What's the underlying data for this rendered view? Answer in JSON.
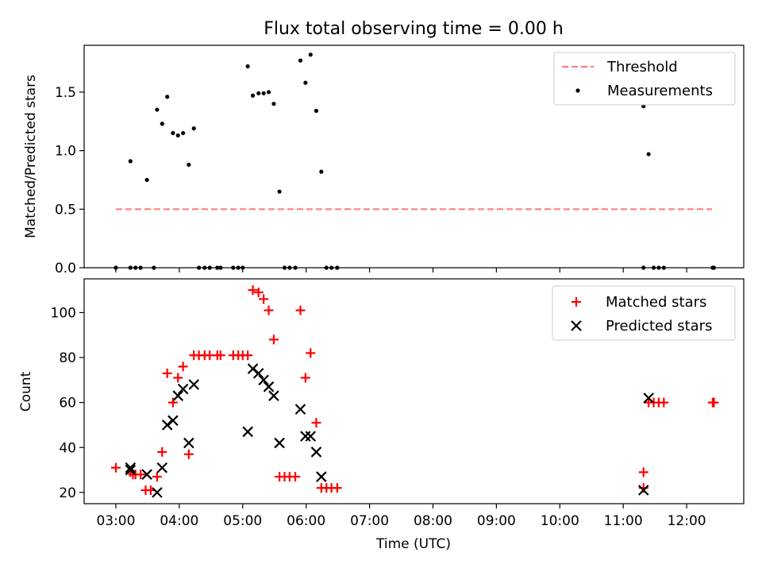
{
  "chart_data": [
    {
      "type": "scatter",
      "title": "Flux total observing time = 0.00 h",
      "xlabel": "",
      "ylabel": "Matched/Predicted stars",
      "xlim_hours": [
        2.5,
        12.9
      ],
      "ylim": [
        0,
        1.9
      ],
      "yticks": [
        0.0,
        0.5,
        1.0,
        1.5
      ],
      "ytick_labels": [
        "0.0",
        "0.5",
        "1.0",
        "1.5"
      ],
      "legend": {
        "position": "top-right",
        "entries": [
          {
            "label": "Threshold",
            "style": "dashed-line",
            "color": "#ff7f7f"
          },
          {
            "label": "Measurements",
            "style": "dot",
            "color": "#000000"
          }
        ]
      },
      "threshold": {
        "value": 0.5,
        "x_start": 3.0,
        "x_end": 12.4,
        "color": "#ff7f7f"
      },
      "series": [
        {
          "name": "Measurements",
          "color": "#000000",
          "points": [
            [
              3.0,
              0.0
            ],
            [
              3.23,
              0.91
            ],
            [
              3.23,
              0.0
            ],
            [
              3.31,
              0.0
            ],
            [
              3.39,
              0.0
            ],
            [
              3.49,
              0.75
            ],
            [
              3.6,
              0.0
            ],
            [
              3.65,
              1.35
            ],
            [
              3.73,
              1.23
            ],
            [
              3.81,
              1.46
            ],
            [
              3.9,
              1.15
            ],
            [
              3.98,
              1.13
            ],
            [
              4.06,
              1.15
            ],
            [
              4.15,
              0.88
            ],
            [
              4.23,
              1.19
            ],
            [
              4.31,
              0.0
            ],
            [
              4.4,
              0.0
            ],
            [
              4.48,
              0.0
            ],
            [
              4.6,
              0.0
            ],
            [
              4.65,
              0.0
            ],
            [
              4.85,
              0.0
            ],
            [
              4.93,
              0.0
            ],
            [
              5.0,
              0.0
            ],
            [
              5.08,
              1.72
            ],
            [
              5.16,
              1.47
            ],
            [
              5.25,
              1.49
            ],
            [
              5.33,
              1.49
            ],
            [
              5.41,
              1.5
            ],
            [
              5.49,
              1.4
            ],
            [
              5.58,
              0.65
            ],
            [
              5.66,
              0.0
            ],
            [
              5.74,
              0.0
            ],
            [
              5.83,
              0.0
            ],
            [
              5.91,
              1.77
            ],
            [
              5.99,
              1.58
            ],
            [
              6.07,
              1.82
            ],
            [
              6.16,
              1.34
            ],
            [
              6.24,
              0.82
            ],
            [
              6.32,
              0.0
            ],
            [
              6.4,
              0.0
            ],
            [
              6.49,
              0.0
            ],
            [
              11.32,
              0.0
            ],
            [
              11.32,
              1.38
            ],
            [
              11.4,
              0.97
            ],
            [
              11.48,
              0.0
            ],
            [
              11.56,
              0.0
            ],
            [
              11.64,
              0.0
            ],
            [
              12.41,
              0.0
            ],
            [
              12.43,
              0.0
            ]
          ]
        }
      ]
    },
    {
      "type": "scatter",
      "title": "",
      "xlabel": "Time (UTC)",
      "ylabel": "Count",
      "xlim_hours": [
        2.5,
        12.9
      ],
      "ylim": [
        15,
        115
      ],
      "yticks": [
        20,
        40,
        60,
        80,
        100
      ],
      "ytick_labels": [
        "20",
        "40",
        "60",
        "80",
        "100"
      ],
      "xticks_hours": [
        3,
        4,
        5,
        6,
        7,
        8,
        9,
        10,
        11,
        12
      ],
      "xtick_labels": [
        "03:00",
        "04:00",
        "05:00",
        "06:00",
        "07:00",
        "08:00",
        "09:00",
        "10:00",
        "11:00",
        "12:00"
      ],
      "legend": {
        "position": "top-right",
        "entries": [
          {
            "label": "Matched stars",
            "style": "plus",
            "color": "#ff0000"
          },
          {
            "label": "Predicted stars",
            "style": "x",
            "color": "#000000"
          }
        ]
      },
      "series": [
        {
          "name": "Matched stars",
          "marker": "plus",
          "color": "#ff0000",
          "points": [
            [
              3.0,
              31
            ],
            [
              3.23,
              29
            ],
            [
              3.27,
              28
            ],
            [
              3.31,
              28
            ],
            [
              3.39,
              28
            ],
            [
              3.47,
              21
            ],
            [
              3.55,
              21
            ],
            [
              3.65,
              27
            ],
            [
              3.73,
              38
            ],
            [
              3.81,
              73
            ],
            [
              3.9,
              60
            ],
            [
              3.98,
              71
            ],
            [
              4.06,
              76
            ],
            [
              4.15,
              37
            ],
            [
              4.23,
              81
            ],
            [
              4.31,
              81
            ],
            [
              4.4,
              81
            ],
            [
              4.48,
              81
            ],
            [
              4.6,
              81
            ],
            [
              4.65,
              81
            ],
            [
              4.85,
              81
            ],
            [
              4.93,
              81
            ],
            [
              5.0,
              81
            ],
            [
              5.08,
              81
            ],
            [
              5.16,
              110
            ],
            [
              5.25,
              109
            ],
            [
              5.33,
              106
            ],
            [
              5.41,
              101
            ],
            [
              5.49,
              88
            ],
            [
              5.58,
              27
            ],
            [
              5.66,
              27
            ],
            [
              5.74,
              27
            ],
            [
              5.83,
              27
            ],
            [
              5.91,
              101
            ],
            [
              5.99,
              71
            ],
            [
              6.07,
              82
            ],
            [
              6.16,
              51
            ],
            [
              6.24,
              22
            ],
            [
              6.32,
              22
            ],
            [
              6.4,
              22
            ],
            [
              6.49,
              22
            ],
            [
              11.32,
              29
            ],
            [
              11.32,
              22
            ],
            [
              11.4,
              60
            ],
            [
              11.48,
              60
            ],
            [
              11.56,
              60
            ],
            [
              11.64,
              60
            ],
            [
              12.41,
              60
            ],
            [
              12.43,
              60
            ]
          ]
        },
        {
          "name": "Predicted stars",
          "marker": "x",
          "color": "#000000",
          "points": [
            [
              3.23,
              31
            ],
            [
              3.23,
              30
            ],
            [
              3.49,
              28
            ],
            [
              3.65,
              20
            ],
            [
              3.73,
              31
            ],
            [
              3.81,
              50
            ],
            [
              3.9,
              52
            ],
            [
              3.98,
              63
            ],
            [
              4.06,
              66
            ],
            [
              4.15,
              42
            ],
            [
              4.23,
              68
            ],
            [
              5.08,
              47
            ],
            [
              5.16,
              75
            ],
            [
              5.25,
              73
            ],
            [
              5.33,
              70
            ],
            [
              5.41,
              67
            ],
            [
              5.49,
              63
            ],
            [
              5.58,
              42
            ],
            [
              5.91,
              57
            ],
            [
              5.99,
              45
            ],
            [
              6.07,
              45
            ],
            [
              6.16,
              38
            ],
            [
              6.24,
              27
            ],
            [
              11.32,
              21
            ],
            [
              11.4,
              62
            ]
          ]
        }
      ]
    }
  ]
}
